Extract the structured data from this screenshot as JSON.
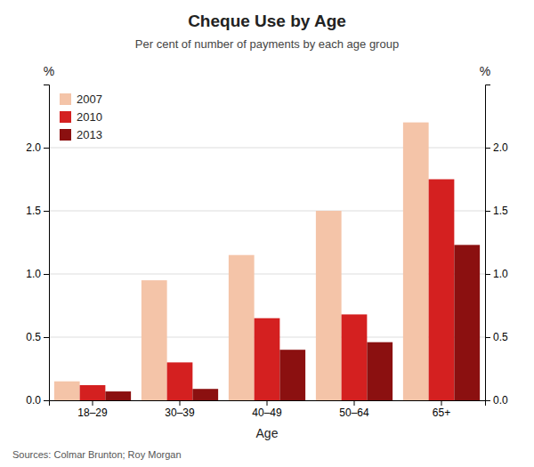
{
  "chart_data": {
    "type": "bar",
    "title": "Cheque Use by Age",
    "subtitle": "Per cent of number of payments by each age group",
    "xlabel": "Age",
    "ylabel": "%",
    "y2label": "%",
    "annotations": [
      "Sources: Colmar Brunton; Roy Morgan"
    ],
    "categories": [
      "18–29",
      "30–39",
      "40–49",
      "50–64",
      "65+"
    ],
    "series": [
      {
        "name": "2007",
        "color": "#F4C4A8",
        "values": [
          0.15,
          0.95,
          1.15,
          1.5,
          2.2
        ]
      },
      {
        "name": "2010",
        "color": "#D42020",
        "values": [
          0.12,
          0.3,
          0.65,
          0.68,
          1.75
        ]
      },
      {
        "name": "2013",
        "color": "#8B1010",
        "values": [
          0.07,
          0.09,
          0.4,
          0.46,
          1.23
        ]
      }
    ],
    "ylim": [
      0,
      2.5
    ],
    "yticks": [
      {
        "value": 0,
        "label": "0.0"
      },
      0.5,
      {
        "value": 1,
        "label": "1.0"
      },
      1.5,
      {
        "value": 2,
        "label": "2.0"
      }
    ],
    "y2lim": [
      0,
      2.5
    ],
    "y2ticks": [
      {
        "value": 0,
        "label": "0.0"
      },
      0.5,
      {
        "value": 1,
        "label": "1.0"
      },
      1.5,
      {
        "value": 2,
        "label": "2.0"
      }
    ],
    "grid": true,
    "legend": "upper left"
  }
}
